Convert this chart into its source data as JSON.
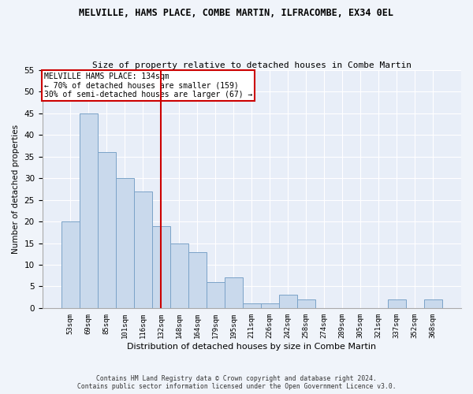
{
  "title": "MELVILLE, HAMS PLACE, COMBE MARTIN, ILFRACOMBE, EX34 0EL",
  "subtitle": "Size of property relative to detached houses in Combe Martin",
  "xlabel": "Distribution of detached houses by size in Combe Martin",
  "ylabel": "Number of detached properties",
  "categories": [
    "53sqm",
    "69sqm",
    "85sqm",
    "101sqm",
    "116sqm",
    "132sqm",
    "148sqm",
    "164sqm",
    "179sqm",
    "195sqm",
    "211sqm",
    "226sqm",
    "242sqm",
    "258sqm",
    "274sqm",
    "289sqm",
    "305sqm",
    "321sqm",
    "337sqm",
    "352sqm",
    "368sqm"
  ],
  "values": [
    20,
    45,
    36,
    30,
    27,
    19,
    15,
    13,
    6,
    7,
    1,
    1,
    3,
    2,
    0,
    0,
    0,
    0,
    2,
    0,
    2
  ],
  "bar_color": "#c9d9ec",
  "bar_edge_color": "#7ba3c8",
  "vline_x_index": 5,
  "vline_color": "#cc0000",
  "annotation_title": "MELVILLE HAMS PLACE: 134sqm",
  "annotation_line1": "← 70% of detached houses are smaller (159)",
  "annotation_line2": "30% of semi-detached houses are larger (67) →",
  "annotation_box_color": "#cc0000",
  "ylim": [
    0,
    55
  ],
  "yticks": [
    0,
    5,
    10,
    15,
    20,
    25,
    30,
    35,
    40,
    45,
    50,
    55
  ],
  "fig_background_color": "#f0f4fa",
  "ax_background_color": "#e8eef8",
  "grid_color": "#ffffff",
  "footer_line1": "Contains HM Land Registry data © Crown copyright and database right 2024.",
  "footer_line2": "Contains public sector information licensed under the Open Government Licence v3.0."
}
